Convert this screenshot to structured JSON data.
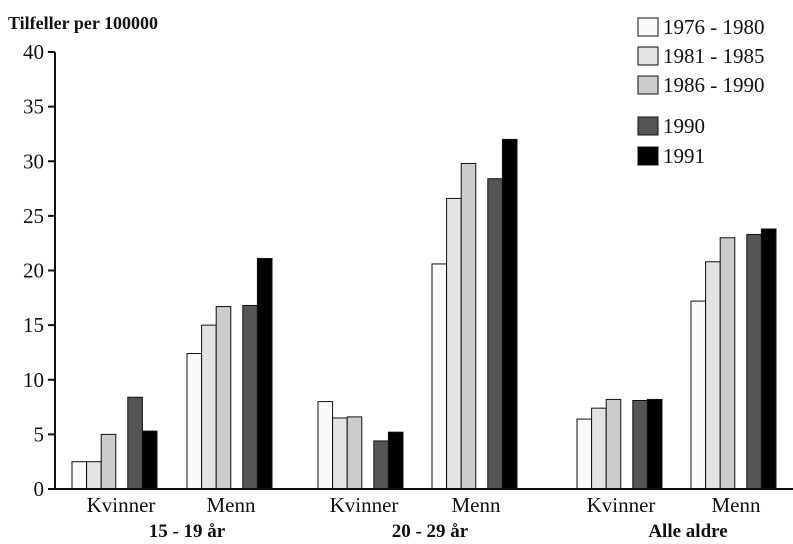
{
  "chart_data": {
    "type": "bar",
    "ylabel": "Tilfeller per 100000",
    "ylim": [
      0,
      40
    ],
    "yticks": [
      "0",
      "5",
      "10",
      "15",
      "20",
      "25",
      "30",
      "35",
      "40"
    ],
    "legend_position": "top-right",
    "groups": [
      {
        "label": "15 - 19 år",
        "categories": [
          "Kvinner",
          "Menn"
        ]
      },
      {
        "label": "20 - 29 år",
        "categories": [
          "Kvinner",
          "Menn"
        ]
      },
      {
        "label": "Alle aldre",
        "categories": [
          "Kvinner",
          "Menn"
        ]
      }
    ],
    "series": [
      {
        "name": "1976 - 1980",
        "color": "#fafafa",
        "values": [
          2.5,
          12.4,
          8.0,
          20.6,
          6.4,
          17.2
        ]
      },
      {
        "name": "1981 - 1985",
        "color": "#e3e3e3",
        "values": [
          2.5,
          15.0,
          6.5,
          26.6,
          7.4,
          20.8
        ]
      },
      {
        "name": "1986 - 1990",
        "color": "#cccccc",
        "values": [
          5.0,
          16.7,
          6.6,
          29.8,
          8.2,
          23.0
        ]
      },
      {
        "name": "1990",
        "color": "#555555",
        "values": [
          8.4,
          16.8,
          4.4,
          28.4,
          8.1,
          23.3
        ]
      },
      {
        "name": "1991",
        "color": "#000000",
        "values": [
          5.3,
          21.1,
          5.2,
          32.0,
          8.2,
          23.8
        ]
      }
    ]
  }
}
